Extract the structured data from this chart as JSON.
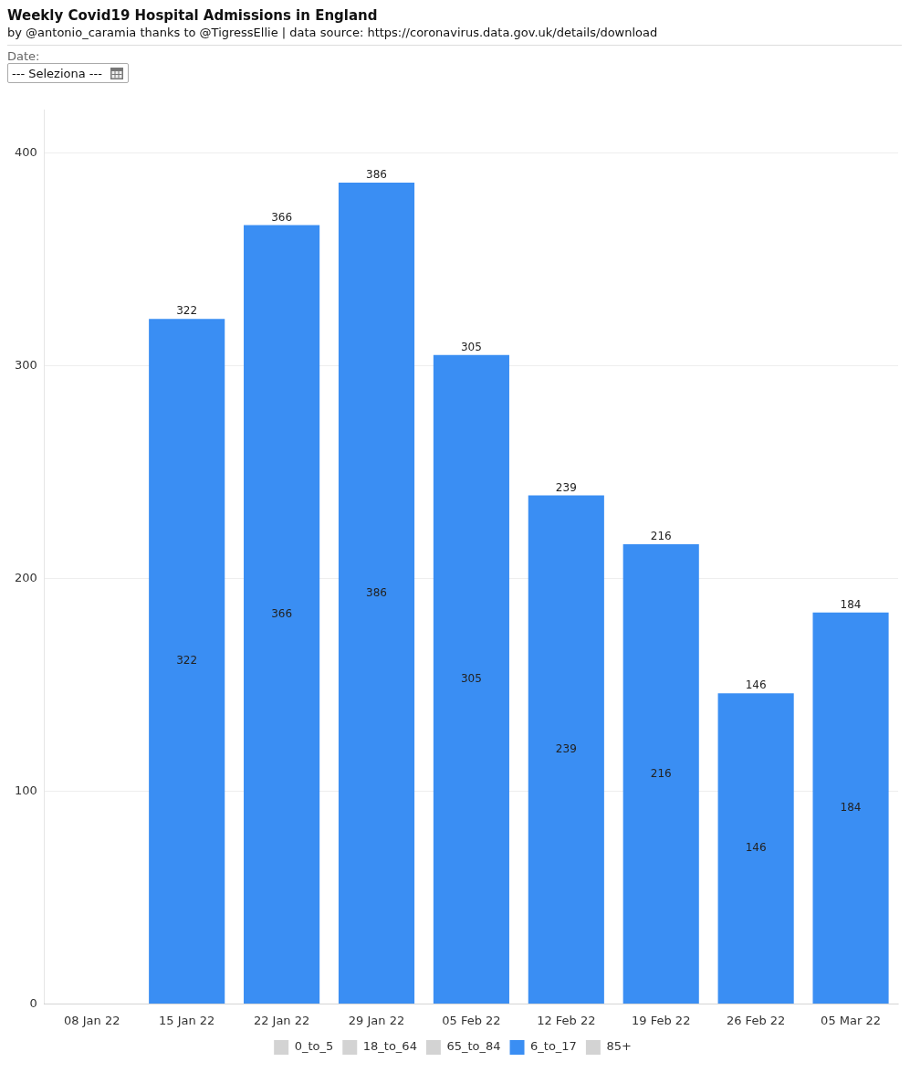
{
  "chart_data": {
    "type": "bar",
    "title": "Weekly Covid19 Hospital Admissions in England",
    "subtitle": "by @antonio_caramia thanks to @TigressEllie | data source: https://coronavirus.data.gov.uk/details/download",
    "annotations": [
      "Date:",
      "--- Seleziona ---",
      "322",
      "366",
      "386",
      "305",
      "239",
      "216",
      "146",
      "184"
    ],
    "categories": [
      "08 Jan 22",
      "15 Jan 22",
      "22 Jan 22",
      "29 Jan 22",
      "05 Feb 22",
      "12 Feb 22",
      "19 Feb 22",
      "26 Feb 22",
      "05 Mar 22"
    ],
    "series": [
      {
        "name": "0_to_5",
        "color": "#d3d3d3",
        "values": [
          null,
          null,
          null,
          null,
          null,
          null,
          null,
          null,
          null
        ]
      },
      {
        "name": "18_to_64",
        "color": "#d3d3d3",
        "values": [
          null,
          null,
          null,
          null,
          null,
          null,
          null,
          null,
          null
        ]
      },
      {
        "name": "65_to_84",
        "color": "#d3d3d3",
        "values": [
          null,
          null,
          null,
          null,
          null,
          null,
          null,
          null,
          null
        ]
      },
      {
        "name": "6_to_17",
        "color": "#3a8ef3",
        "values": [
          null,
          322,
          366,
          386,
          305,
          239,
          216,
          146,
          184
        ]
      },
      {
        "name": "85+",
        "color": "#d3d3d3",
        "values": [
          null,
          null,
          null,
          null,
          null,
          null,
          null,
          null,
          null
        ]
      }
    ],
    "ylim": [
      0,
      420
    ],
    "yticks": [
      0,
      100,
      200,
      300,
      400
    ],
    "grid": "y",
    "legend": "bottom",
    "data_labels": true
  }
}
